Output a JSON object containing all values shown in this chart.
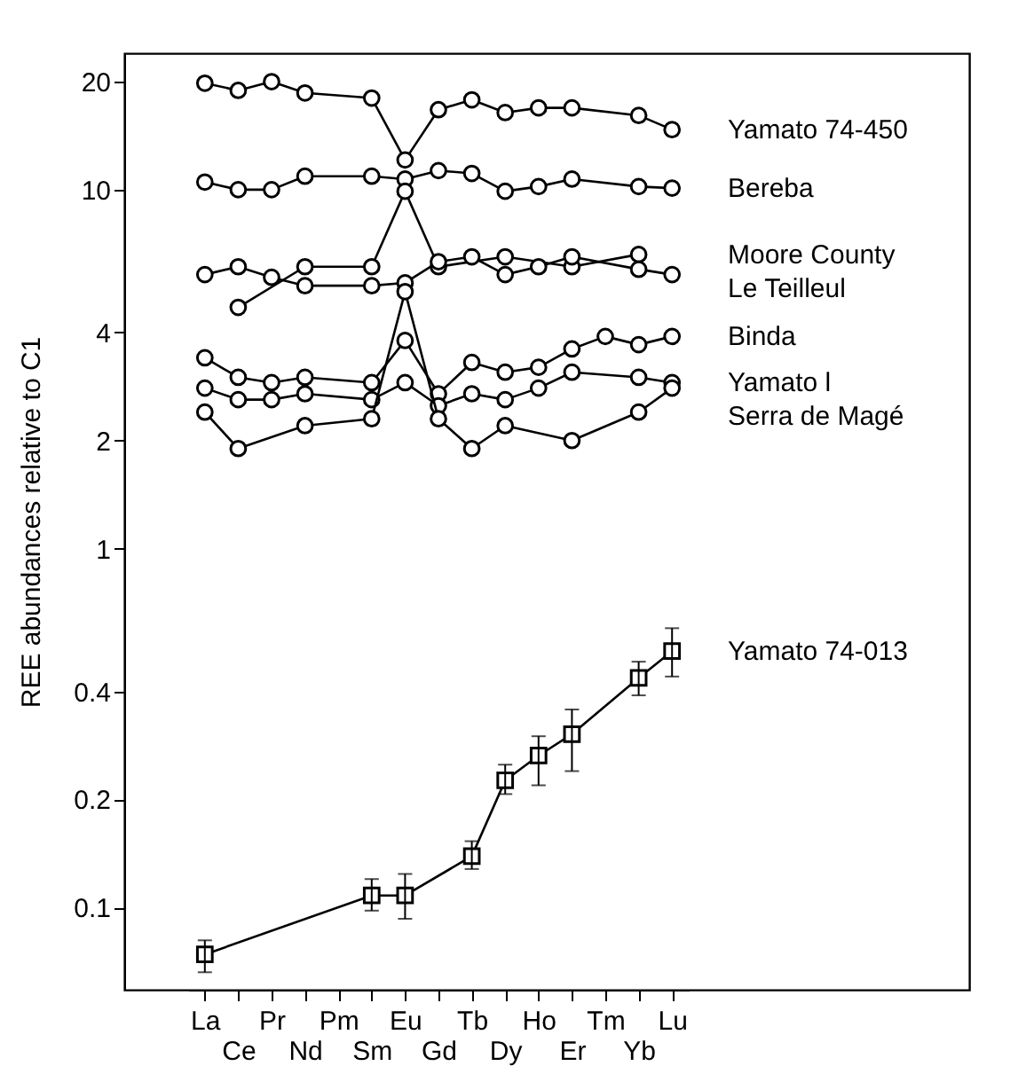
{
  "chart_data": {
    "type": "line",
    "ylabel": "REE abundances relative to C1",
    "categories": [
      "La",
      "Ce",
      "Pr",
      "Nd",
      "Pm",
      "Sm",
      "Eu",
      "Gd",
      "Tb",
      "Dy",
      "Ho",
      "Er",
      "Tm",
      "Yb",
      "Lu"
    ],
    "log": "y",
    "ylim": [
      0.059,
      24
    ],
    "yticks": [
      0.1,
      0.2,
      0.4,
      1,
      2,
      4,
      10,
      20
    ],
    "legend": false,
    "marker": "circle",
    "line_style": "solid",
    "series": [
      {
        "name": "Yamato 74-450",
        "color": "#000000",
        "values": [
          19.8,
          18.9,
          20.0,
          18.6,
          null,
          18.0,
          12.1,
          16.7,
          17.8,
          16.4,
          16.9,
          16.9,
          null,
          16.1,
          14.7
        ]
      },
      {
        "name": "Bereba",
        "color": "#000000",
        "values": [
          10.5,
          10.0,
          10.0,
          10.9,
          null,
          10.9,
          10.7,
          11.3,
          11.1,
          9.9,
          10.2,
          10.7,
          null,
          10.2,
          10.1
        ]
      },
      {
        "name": "Moore County",
        "color": "#000000",
        "values": [
          null,
          4.7,
          null,
          6.1,
          null,
          6.1,
          9.9,
          6.1,
          null,
          6.5,
          null,
          6.1,
          null,
          6.6,
          null
        ]
      },
      {
        "name": "Le Teilleul",
        "color": "#000000",
        "values": [
          5.8,
          6.1,
          5.7,
          5.4,
          null,
          5.4,
          5.5,
          6.3,
          6.5,
          5.8,
          6.1,
          6.5,
          null,
          6.0,
          5.8
        ]
      },
      {
        "name": "Binda",
        "color": "#000000",
        "values": [
          3.4,
          3.0,
          2.9,
          3.0,
          null,
          2.9,
          3.8,
          2.7,
          3.3,
          3.1,
          3.2,
          3.6,
          3.9,
          3.7,
          3.9
        ]
      },
      {
        "name": "Yamato l",
        "color": "#000000",
        "values": [
          2.8,
          2.6,
          2.6,
          2.7,
          null,
          2.6,
          2.9,
          2.5,
          2.7,
          2.6,
          2.8,
          3.1,
          null,
          3.0,
          2.9
        ]
      },
      {
        "name": "Serra de Magé",
        "color": "#000000",
        "values": [
          2.4,
          1.9,
          null,
          2.2,
          null,
          2.3,
          5.2,
          2.3,
          1.9,
          2.2,
          null,
          2.0,
          null,
          2.4,
          2.8
        ]
      },
      {
        "name": "Yamato 74-013",
        "color": "#000000",
        "marker": "square",
        "values": [
          0.074,
          null,
          null,
          null,
          null,
          0.108,
          0.108,
          null,
          0.139,
          0.226,
          0.265,
          0.304,
          null,
          0.436,
          0.518
        ],
        "errors": [
          [
            0.066,
            0.081
          ],
          null,
          null,
          null,
          null,
          [
            0.098,
            0.12
          ],
          [
            0.093,
            0.124
          ],
          null,
          [
            0.128,
            0.153
          ],
          [
            0.207,
            0.25
          ],
          [
            0.219,
            0.3
          ],
          [
            0.24,
            0.356
          ],
          null,
          [
            0.39,
            0.484
          ],
          [
            0.44,
            0.6
          ]
        ]
      }
    ]
  }
}
